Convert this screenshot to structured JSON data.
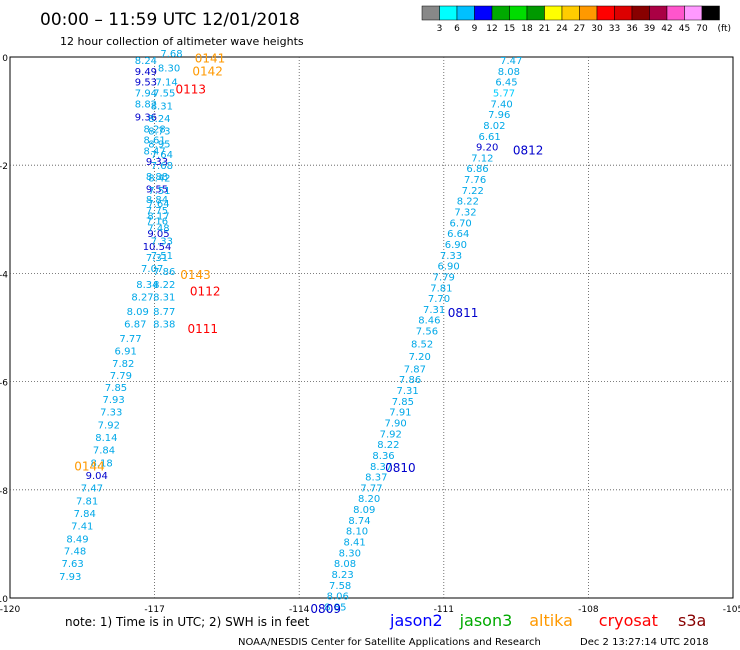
{
  "header": {
    "title": "00:00 – 11:59 UTC 12/01/2018",
    "subtitle": "12 hour collection of altimeter wave heights"
  },
  "legend": {
    "colors": [
      "#888888",
      "#00ffff",
      "#00c0ff",
      "#0000ff",
      "#00aa00",
      "#00dd00",
      "#009900",
      "#ffff00",
      "#ffcc00",
      "#ff9900",
      "#ff0000",
      "#dd0000",
      "#880000",
      "#aa0044",
      "#ff55cc",
      "#ff99ff",
      "#000000"
    ],
    "labels": [
      "3",
      "6",
      "9",
      "12",
      "15",
      "18",
      "21",
      "24",
      "27",
      "30",
      "33",
      "36",
      "39",
      "42",
      "45",
      "70"
    ],
    "unit": "(ft)"
  },
  "axes": {
    "x_ticks": [
      {
        "value": -120,
        "label": "-120"
      },
      {
        "value": -117,
        "label": "-117"
      },
      {
        "value": -114,
        "label": "-114"
      },
      {
        "value": -111,
        "label": "-111"
      },
      {
        "value": -108,
        "label": "-108"
      },
      {
        "value": -105,
        "label": "-105"
      }
    ],
    "y_ticks": [
      {
        "value": 0,
        "label": "0"
      },
      {
        "value": -2,
        "label": "-2"
      },
      {
        "value": -4,
        "label": "-4"
      },
      {
        "value": -6,
        "label": "-6"
      },
      {
        "value": -8,
        "label": "-8"
      },
      {
        "value": -10,
        "label": "-10"
      }
    ]
  },
  "track_left": [
    {
      "lon": -117.18,
      "lat": -0.13,
      "v": "8.24"
    },
    {
      "lon": -117.18,
      "lat": -0.33,
      "v": "9.49"
    },
    {
      "lon": -117.18,
      "lat": -0.53,
      "v": "9.53"
    },
    {
      "lon": -117.18,
      "lat": -0.73,
      "v": "7.94"
    },
    {
      "lon": -117.18,
      "lat": -0.93,
      "v": "8.82"
    },
    {
      "lon": -117.18,
      "lat": -1.17,
      "v": "9.36"
    },
    {
      "lon": -117.0,
      "lat": -1.4,
      "v": "8.28"
    },
    {
      "lon": -117.0,
      "lat": -1.6,
      "v": "8.61"
    },
    {
      "lon": -117.0,
      "lat": -1.8,
      "v": "8.47"
    },
    {
      "lon": -116.95,
      "lat": -2.0,
      "v": "9.33"
    },
    {
      "lon": -116.95,
      "lat": -2.27,
      "v": "8.88"
    },
    {
      "lon": -116.95,
      "lat": -2.5,
      "v": "9.55"
    },
    {
      "lon": -116.95,
      "lat": -2.7,
      "v": "8.84"
    },
    {
      "lon": -116.95,
      "lat": -2.9,
      "v": "7.75"
    },
    {
      "lon": -116.95,
      "lat": -3.1,
      "v": "7.16"
    },
    {
      "lon": -116.92,
      "lat": -3.33,
      "v": "9.05"
    },
    {
      "lon": -116.95,
      "lat": -3.57,
      "v": "10.54"
    },
    {
      "lon": -116.95,
      "lat": -3.77,
      "v": "7.31"
    },
    {
      "lon": -117.05,
      "lat": -3.97,
      "v": "7.07"
    },
    {
      "lon": -117.15,
      "lat": -4.27,
      "v": "8.34"
    },
    {
      "lon": -117.25,
      "lat": -4.5,
      "v": "8.27"
    },
    {
      "lon": -117.35,
      "lat": -4.77,
      "v": "8.09"
    },
    {
      "lon": -117.4,
      "lat": -5.0,
      "v": "6.87"
    },
    {
      "lon": -117.5,
      "lat": -5.27,
      "v": "7.77"
    },
    {
      "lon": -117.6,
      "lat": -5.5,
      "v": "6.91"
    },
    {
      "lon": -117.65,
      "lat": -5.73,
      "v": "7.82"
    },
    {
      "lon": -117.7,
      "lat": -5.95,
      "v": "7.79"
    },
    {
      "lon": -117.8,
      "lat": -6.17,
      "v": "7.85"
    },
    {
      "lon": -117.85,
      "lat": -6.4,
      "v": "7.93"
    },
    {
      "lon": -117.9,
      "lat": -6.63,
      "v": "7.33"
    },
    {
      "lon": -117.95,
      "lat": -6.87,
      "v": "7.92"
    },
    {
      "lon": -118.0,
      "lat": -7.1,
      "v": "8.14"
    },
    {
      "lon": -118.05,
      "lat": -7.33,
      "v": "7.84"
    },
    {
      "lon": -118.1,
      "lat": -7.57,
      "v": "8.18"
    },
    {
      "lon": -118.2,
      "lat": -7.8,
      "v": "9.04"
    },
    {
      "lon": -118.3,
      "lat": -8.03,
      "v": "7.47"
    },
    {
      "lon": -118.4,
      "lat": -8.27,
      "v": "7.81"
    },
    {
      "lon": -118.45,
      "lat": -8.5,
      "v": "7.84"
    },
    {
      "lon": -118.5,
      "lat": -8.73,
      "v": "7.41"
    },
    {
      "lon": -118.6,
      "lat": -8.97,
      "v": "8.49"
    },
    {
      "lon": -118.65,
      "lat": -9.2,
      "v": "7.48"
    },
    {
      "lon": -118.7,
      "lat": -9.43,
      "v": "7.63"
    },
    {
      "lon": -118.75,
      "lat": -9.67,
      "v": "7.93"
    }
  ],
  "track_left2": [
    {
      "lon": -116.65,
      "lat": 0.0,
      "v": "7.68"
    },
    {
      "lon": -116.7,
      "lat": -0.27,
      "v": "8.30"
    },
    {
      "lon": -116.75,
      "lat": -0.53,
      "v": "7.14"
    },
    {
      "lon": -116.8,
      "lat": -0.73,
      "v": "7.55"
    },
    {
      "lon": -116.85,
      "lat": -0.97,
      "v": "8.31"
    },
    {
      "lon": -116.9,
      "lat": -1.2,
      "v": "8.24"
    },
    {
      "lon": -116.9,
      "lat": -1.43,
      "v": "8.73"
    },
    {
      "lon": -116.9,
      "lat": -1.67,
      "v": "8.95"
    },
    {
      "lon": -116.85,
      "lat": -1.87,
      "v": "7.64"
    },
    {
      "lon": -116.85,
      "lat": -2.07,
      "v": "7.68"
    },
    {
      "lon": -116.9,
      "lat": -2.3,
      "v": "8.42"
    },
    {
      "lon": -116.9,
      "lat": -2.53,
      "v": "7.51"
    },
    {
      "lon": -116.92,
      "lat": -2.77,
      "v": "7.64"
    },
    {
      "lon": -116.92,
      "lat": -3.0,
      "v": "8.17"
    },
    {
      "lon": -116.92,
      "lat": -3.23,
      "v": "7.48"
    },
    {
      "lon": -116.85,
      "lat": -3.47,
      "v": "7.33"
    },
    {
      "lon": -116.85,
      "lat": -3.73,
      "v": "7.51"
    },
    {
      "lon": -116.8,
      "lat": -4.03,
      "v": "7.86"
    },
    {
      "lon": -116.8,
      "lat": -4.27,
      "v": "8.22"
    },
    {
      "lon": -116.8,
      "lat": -4.5,
      "v": "8.31"
    },
    {
      "lon": -116.8,
      "lat": -4.77,
      "v": "8.77"
    },
    {
      "lon": -116.8,
      "lat": -5.0,
      "v": "8.38"
    }
  ],
  "track_right": [
    {
      "lon": -109.6,
      "lat": -0.13,
      "v": "7.47"
    },
    {
      "lon": -109.65,
      "lat": -0.33,
      "v": "8.08"
    },
    {
      "lon": -109.7,
      "lat": -0.53,
      "v": "6.45"
    },
    {
      "lon": -109.75,
      "lat": -0.73,
      "v": "5.77"
    },
    {
      "lon": -109.8,
      "lat": -0.93,
      "v": "7.40"
    },
    {
      "lon": -109.85,
      "lat": -1.13,
      "v": "7.96"
    },
    {
      "lon": -109.95,
      "lat": -1.33,
      "v": "8.02"
    },
    {
      "lon": -110.05,
      "lat": -1.53,
      "v": "6.61"
    },
    {
      "lon": -110.1,
      "lat": -1.73,
      "v": "9.20"
    },
    {
      "lon": -110.2,
      "lat": -1.93,
      "v": "7.12"
    },
    {
      "lon": -110.3,
      "lat": -2.13,
      "v": "6.86"
    },
    {
      "lon": -110.35,
      "lat": -2.33,
      "v": "7.76"
    },
    {
      "lon": -110.4,
      "lat": -2.53,
      "v": "7.22"
    },
    {
      "lon": -110.5,
      "lat": -2.73,
      "v": "8.22"
    },
    {
      "lon": -110.55,
      "lat": -2.93,
      "v": "7.32"
    },
    {
      "lon": -110.65,
      "lat": -3.13,
      "v": "6.70"
    },
    {
      "lon": -110.7,
      "lat": -3.33,
      "v": "6.64"
    },
    {
      "lon": -110.75,
      "lat": -3.53,
      "v": "6.90"
    },
    {
      "lon": -110.85,
      "lat": -3.73,
      "v": "7.33"
    },
    {
      "lon": -110.9,
      "lat": -3.93,
      "v": "6.90"
    },
    {
      "lon": -111.0,
      "lat": -4.13,
      "v": "7.79"
    },
    {
      "lon": -111.05,
      "lat": -4.33,
      "v": "7.81"
    },
    {
      "lon": -111.1,
      "lat": -4.53,
      "v": "7.70"
    },
    {
      "lon": -111.2,
      "lat": -4.73,
      "v": "7.31"
    },
    {
      "lon": -111.3,
      "lat": -4.93,
      "v": "8.46"
    },
    {
      "lon": -111.35,
      "lat": -5.13,
      "v": "7.56"
    },
    {
      "lon": -111.45,
      "lat": -5.37,
      "v": "8.52"
    },
    {
      "lon": -111.5,
      "lat": -5.6,
      "v": "7.20"
    },
    {
      "lon": -111.6,
      "lat": -5.83,
      "v": "7.87"
    },
    {
      "lon": -111.7,
      "lat": -6.03,
      "v": "7.86"
    },
    {
      "lon": -111.75,
      "lat": -6.23,
      "v": "7.31"
    },
    {
      "lon": -111.85,
      "lat": -6.43,
      "v": "7.85"
    },
    {
      "lon": -111.9,
      "lat": -6.63,
      "v": "7.91"
    },
    {
      "lon": -112.0,
      "lat": -6.83,
      "v": "7.90"
    },
    {
      "lon": -112.1,
      "lat": -7.03,
      "v": "7.92"
    },
    {
      "lon": -112.15,
      "lat": -7.23,
      "v": "8.22"
    },
    {
      "lon": -112.25,
      "lat": -7.43,
      "v": "8.36"
    },
    {
      "lon": -112.3,
      "lat": -7.63,
      "v": "8.37"
    },
    {
      "lon": -112.4,
      "lat": -7.83,
      "v": "8.37"
    },
    {
      "lon": -112.5,
      "lat": -8.03,
      "v": "7.77"
    },
    {
      "lon": -112.55,
      "lat": -8.23,
      "v": "8.20"
    },
    {
      "lon": -112.65,
      "lat": -8.43,
      "v": "8.09"
    },
    {
      "lon": -112.75,
      "lat": -8.63,
      "v": "8.74"
    },
    {
      "lon": -112.8,
      "lat": -8.83,
      "v": "8.10"
    },
    {
      "lon": -112.85,
      "lat": -9.03,
      "v": "8.41"
    },
    {
      "lon": -112.95,
      "lat": -9.23,
      "v": "8.30"
    },
    {
      "lon": -113.05,
      "lat": -9.43,
      "v": "8.08"
    },
    {
      "lon": -113.1,
      "lat": -9.63,
      "v": "8.23"
    },
    {
      "lon": -113.15,
      "lat": -9.83,
      "v": "7.58"
    },
    {
      "lon": -113.2,
      "lat": -10.03,
      "v": "8.06"
    },
    {
      "lon": -113.25,
      "lat": -10.23,
      "v": "8.85"
    }
  ],
  "time_labels": [
    {
      "lon": -115.85,
      "lat": -0.03,
      "t": "0141",
      "color": "#ff9900"
    },
    {
      "lon": -115.9,
      "lat": -0.27,
      "t": "0142",
      "color": "#ff9900"
    },
    {
      "lon": -116.25,
      "lat": -0.6,
      "t": "0113",
      "color": "#ff0000"
    },
    {
      "lon": -116.15,
      "lat": -4.03,
      "t": "0143",
      "color": "#ff9900"
    },
    {
      "lon": -115.95,
      "lat": -4.33,
      "t": "0112",
      "color": "#ff0000"
    },
    {
      "lon": -116.0,
      "lat": -5.03,
      "t": "0111",
      "color": "#ff0000"
    },
    {
      "lon": -118.35,
      "lat": -7.57,
      "t": "0144",
      "color": "#ff9900"
    },
    {
      "lon": -109.25,
      "lat": -1.73,
      "t": "0812",
      "color": "#0000cc"
    },
    {
      "lon": -110.6,
      "lat": -4.73,
      "t": "0811",
      "color": "#0000cc"
    },
    {
      "lon": -111.9,
      "lat": -7.6,
      "t": "0810",
      "color": "#0000cc"
    },
    {
      "lon": -113.45,
      "lat": -10.2,
      "t": "0809",
      "color": "#0000cc"
    }
  ],
  "footer": {
    "note": "note: 1) Time is in UTC; 2) SWH is in feet",
    "credit": "NOAA/NESDIS Center for Satellite Applications and Research",
    "timestamp": "Dec  2 13:27:14 UTC 2018",
    "missions": [
      {
        "name": "jason2",
        "color": "#0000ff"
      },
      {
        "name": "jason3",
        "color": "#00aa00"
      },
      {
        "name": "altika",
        "color": "#ff9900"
      },
      {
        "name": "cryosat",
        "color": "#ff0000"
      },
      {
        "name": "s3a",
        "color": "#880000"
      }
    ]
  }
}
